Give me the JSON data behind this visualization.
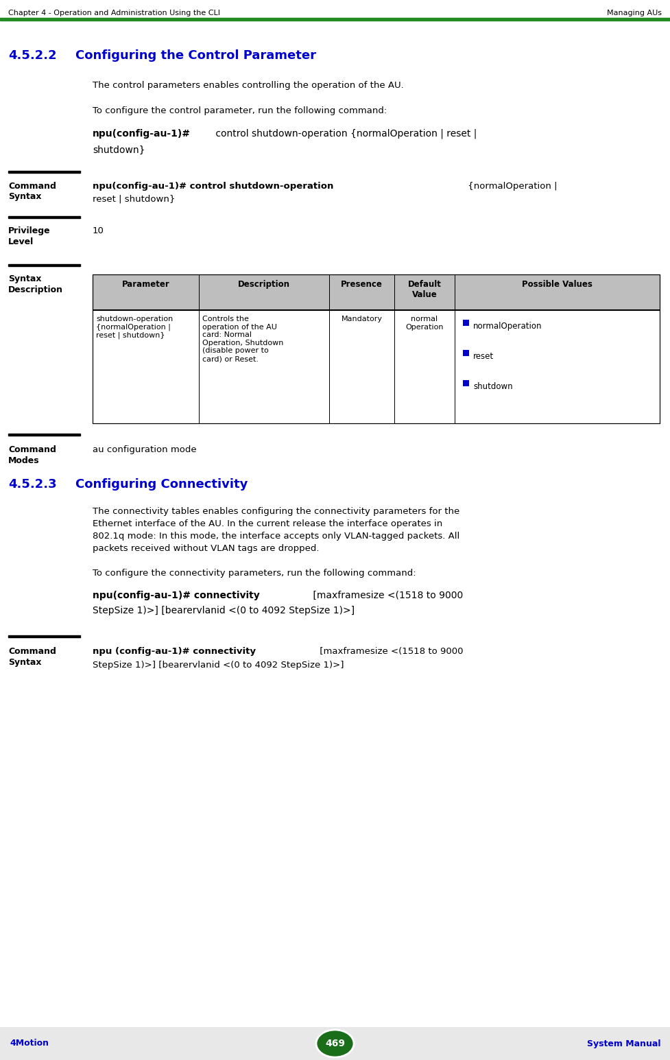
{
  "header_left": "Chapter 4 - Operation and Administration Using the CLI",
  "header_right": "Managing AUs",
  "header_line_color": "#228B22",
  "footer_bg": "#E8E8E8",
  "footer_page": "469",
  "footer_left": "4Motion",
  "footer_right": "System Manual",
  "footer_oval_color": "#1A6E1A",
  "section_num": "4.5.2.2",
  "section_title": "Configuring the Control Parameter",
  "section2_num": "4.5.2.3",
  "section2_title": "Configuring Connectivity",
  "section_color": "#0000CC",
  "para1": "The control parameters enables controlling the operation of the AU.",
  "para2": "To configure the control parameter, run the following command:",
  "para3_line1": "The connectivity tables enables configuring the connectivity parameters for the",
  "para3_line2": "Ethernet interface of the AU. In the current release the interface operates in",
  "para3_line3": "802.1q mode: In this mode, the interface accepts only VLAN-tagged packets. All",
  "para3_line4": "packets received without VLAN tags are dropped.",
  "para4": "To configure the connectivity parameters, run the following command:",
  "table_headers": [
    "Parameter",
    "Description",
    "Presence",
    "Default\nValue",
    "Possible Values"
  ],
  "table_col1": "shutdown-operation\n{normalOperation |\nreset | shutdown}",
  "table_col2": "Controls the\noperation of the AU\ncard: Normal\nOperation, Shutdown\n(disable power to\ncard) or Reset.",
  "table_col3": "Mandatory",
  "table_col4": "normal\nOperation",
  "table_col5_items": [
    "normalOperation",
    "reset",
    "shutdown"
  ],
  "divider_color": "#000000",
  "bullet_color": "#0000CC",
  "text_color": "#000000",
  "bg_color": "#FFFFFF",
  "table_header_bg": "#BEBEBE",
  "table_border_color": "#000000"
}
